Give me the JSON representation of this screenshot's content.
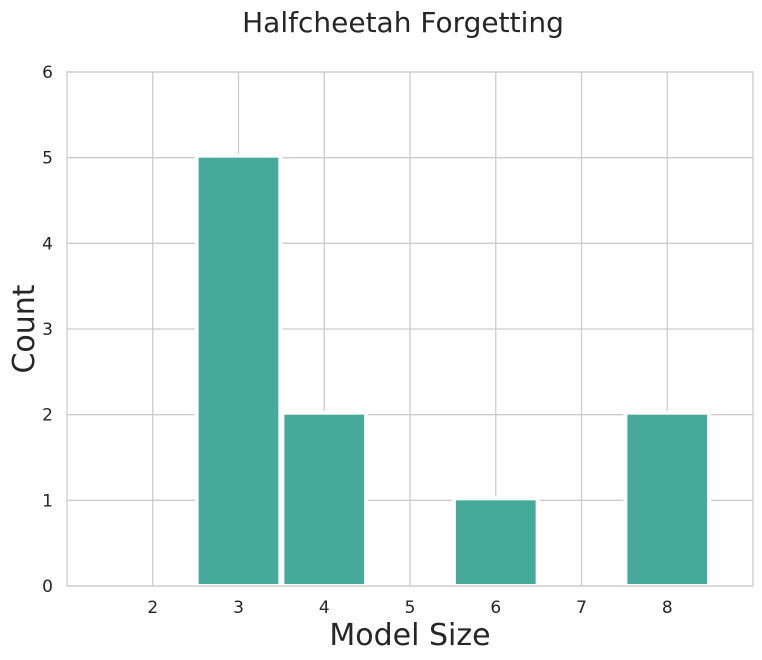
{
  "chart_data": {
    "type": "bar",
    "title": "Halfcheetah Forgetting",
    "xlabel": "Model Size",
    "ylabel": "Count",
    "categories": [
      "3",
      "4",
      "6",
      "8"
    ],
    "values": [
      5,
      2,
      1,
      2
    ],
    "x": [
      3,
      4,
      6,
      8
    ],
    "xlim": [
      1,
      9
    ],
    "ylim": [
      0,
      6
    ],
    "xticks": [
      2,
      3,
      4,
      5,
      6,
      7,
      8
    ],
    "yticks": [
      0,
      1,
      2,
      3,
      4,
      5,
      6
    ],
    "bar_color": "#46aa9a",
    "grid": true,
    "legend": "none"
  }
}
